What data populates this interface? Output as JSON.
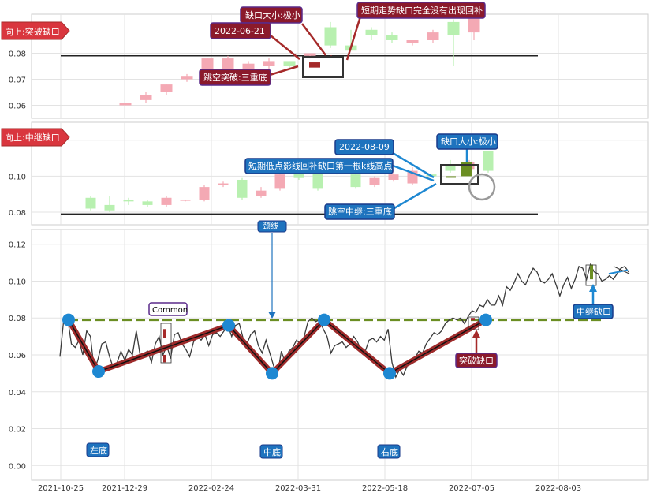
{
  "colors": {
    "up_red": "#f4a9b4",
    "down_green": "#b8f0b0",
    "dark_red": "#a52a2a",
    "dark_green": "#6b8e23",
    "box_red_fill": "#8b1a2b",
    "box_blue_fill": "#1e73be",
    "line_gray": "#3a3a3a",
    "level_green": "#6b8e23",
    "pivot_blue": "#1e88d2",
    "zigzag_red": "#9e2b2b"
  },
  "panel1": {
    "tag": "向上:突破缺口",
    "yticks": [
      "0.06",
      "0.07",
      "0.08"
    ],
    "callouts": {
      "gap_size": "缺口大小:极小",
      "date": "2022-06-21",
      "short_term": "短期走势缺口完全没有出现回补",
      "triple_bottom": "跳空突破:三重底"
    }
  },
  "panel2": {
    "tag": "向上:中继缺口",
    "yticks": [
      "0.08",
      "0.10",
      "0.12"
    ],
    "callouts": {
      "date": "2022-08-09",
      "gap_size": "缺口大小:极小",
      "shadow": "短期低点影线回补缺口第一根k线高点",
      "triple_bottom": "跳空中继:三重底"
    }
  },
  "panel3": {
    "neckline_label": "颈线",
    "common_label": "Common",
    "breakaway_label": "突破缺口",
    "runaway_label": "中继缺口",
    "bottoms": [
      "左底",
      "中底",
      "右底"
    ],
    "yticks": [
      "0.00",
      "0.02",
      "0.04",
      "0.06",
      "0.08",
      "0.10",
      "0.12"
    ]
  },
  "xaxis": {
    "ticks": [
      "2021-10-25",
      "2021-12-29",
      "2022-02-24",
      "2022-03-31",
      "2022-05-18",
      "2022-07-05",
      "2022-08-03"
    ]
  },
  "chart_data": [
    {
      "type": "candlestick",
      "panel": "top",
      "ylim": [
        0.055,
        0.095
      ],
      "note": "zoomed view of the breakaway gap area",
      "level": 0.079,
      "candles": [
        {
          "o": 0.06,
          "c": 0.061,
          "h": 0.061,
          "l": 0.06
        },
        {
          "o": 0.062,
          "c": 0.064,
          "h": 0.065,
          "l": 0.061
        },
        {
          "o": 0.065,
          "c": 0.068,
          "h": 0.068,
          "l": 0.064
        },
        {
          "o": 0.07,
          "c": 0.071,
          "h": 0.072,
          "l": 0.069
        },
        {
          "o": 0.073,
          "c": 0.078,
          "h": 0.078,
          "l": 0.072
        },
        {
          "o": 0.074,
          "c": 0.078,
          "h": 0.079,
          "l": 0.073
        },
        {
          "o": 0.074,
          "c": 0.076,
          "h": 0.077,
          "l": 0.073
        },
        {
          "o": 0.075,
          "c": 0.077,
          "h": 0.078,
          "l": 0.074
        },
        {
          "o": 0.077,
          "c": 0.075,
          "h": 0.077,
          "l": 0.074
        },
        {
          "o": 0.079,
          "c": 0.08,
          "h": 0.08,
          "l": 0.078
        },
        {
          "o": 0.09,
          "c": 0.083,
          "h": 0.092,
          "l": 0.082
        },
        {
          "o": 0.083,
          "c": 0.081,
          "h": 0.089,
          "l": 0.081
        },
        {
          "o": 0.089,
          "c": 0.087,
          "h": 0.09,
          "l": 0.085
        },
        {
          "o": 0.087,
          "c": 0.085,
          "h": 0.088,
          "l": 0.084
        },
        {
          "o": 0.084,
          "c": 0.085,
          "h": 0.085,
          "l": 0.083
        },
        {
          "o": 0.085,
          "c": 0.088,
          "h": 0.089,
          "l": 0.084
        },
        {
          "o": 0.092,
          "c": 0.087,
          "h": 0.093,
          "l": 0.075
        },
        {
          "o": 0.088,
          "c": 0.094,
          "h": 0.094,
          "l": 0.085
        }
      ]
    },
    {
      "type": "candlestick",
      "panel": "middle",
      "ylim": [
        0.073,
        0.13
      ],
      "note": "zoomed view of the runaway gap area",
      "level": 0.079,
      "candles": [
        {
          "o": 0.088,
          "c": 0.082,
          "h": 0.089,
          "l": 0.081
        },
        {
          "o": 0.084,
          "c": 0.081,
          "h": 0.089,
          "l": 0.08
        },
        {
          "o": 0.087,
          "c": 0.086,
          "h": 0.088,
          "l": 0.084
        },
        {
          "o": 0.086,
          "c": 0.084,
          "h": 0.087,
          "l": 0.083
        },
        {
          "o": 0.084,
          "c": 0.088,
          "h": 0.089,
          "l": 0.083
        },
        {
          "o": 0.087,
          "c": 0.087,
          "h": 0.087,
          "l": 0.086
        },
        {
          "o": 0.087,
          "c": 0.094,
          "h": 0.095,
          "l": 0.086
        },
        {
          "o": 0.095,
          "c": 0.096,
          "h": 0.097,
          "l": 0.094
        },
        {
          "o": 0.098,
          "c": 0.088,
          "h": 0.099,
          "l": 0.087
        },
        {
          "o": 0.089,
          "c": 0.092,
          "h": 0.094,
          "l": 0.088
        },
        {
          "o": 0.093,
          "c": 0.101,
          "h": 0.102,
          "l": 0.092
        },
        {
          "o": 0.104,
          "c": 0.099,
          "h": 0.107,
          "l": 0.098
        },
        {
          "o": 0.104,
          "c": 0.093,
          "h": 0.106,
          "l": 0.092
        },
        {
          "o": 0.104,
          "c": 0.102,
          "h": 0.106,
          "l": 0.101
        },
        {
          "o": 0.101,
          "c": 0.094,
          "h": 0.102,
          "l": 0.093
        },
        {
          "o": 0.095,
          "c": 0.099,
          "h": 0.1,
          "l": 0.094
        },
        {
          "o": 0.098,
          "c": 0.101,
          "h": 0.104,
          "l": 0.097
        },
        {
          "o": 0.096,
          "c": 0.103,
          "h": 0.105,
          "l": 0.095
        },
        {
          "o": 0.101,
          "c": 0.1,
          "h": 0.101,
          "l": 0.099
        },
        {
          "o": 0.106,
          "c": 0.103,
          "h": 0.109,
          "l": 0.102
        },
        {
          "o": 0.104,
          "c": 0.108,
          "h": 0.109,
          "l": 0.103
        },
        {
          "o": 0.114,
          "c": 0.103,
          "h": 0.114,
          "l": 0.102
        }
      ]
    },
    {
      "type": "line",
      "panel": "bottom",
      "ylim": [
        -0.008,
        0.128
      ],
      "neckline": 0.079,
      "series": [
        {
          "values": [
            0.059,
            0.079,
            0.08,
            0.066,
            0.064,
            0.068,
            0.06,
            0.073,
            0.07,
            0.051,
            0.058,
            0.066,
            0.067,
            0.059,
            0.053,
            0.056,
            0.062,
            0.057,
            0.063,
            0.06,
            0.073,
            0.06,
            0.061,
            0.062,
            0.056,
            0.066,
            0.07,
            0.06,
            0.065,
            0.058,
            0.071,
            0.072,
            0.066,
            0.063,
            0.059,
            0.067,
            0.07,
            0.068,
            0.071,
            0.065,
            0.071,
            0.072,
            0.07,
            0.073,
            0.076,
            0.07,
            0.076,
            0.077,
            0.069,
            0.066,
            0.071,
            0.073,
            0.065,
            0.061,
            0.068,
            0.061,
            0.054,
            0.049,
            0.062,
            0.056,
            0.062,
            0.064,
            0.068,
            0.066,
            0.07,
            0.078,
            0.08,
            0.078,
            0.079,
            0.074,
            0.07,
            0.061,
            0.065,
            0.066,
            0.067,
            0.064,
            0.066,
            0.07,
            0.067,
            0.062,
            0.062,
            0.068,
            0.069,
            0.067,
            0.07,
            0.068,
            0.074,
            0.056,
            0.048,
            0.052,
            0.049,
            0.054,
            0.055,
            0.058,
            0.062,
            0.061,
            0.066,
            0.069,
            0.072,
            0.071,
            0.073,
            0.077,
            0.079,
            0.08,
            0.079,
            0.08,
            0.077,
            0.081,
            0.084,
            0.083,
            0.087,
            0.086,
            0.09,
            0.087,
            0.087,
            0.092,
            0.087,
            0.097,
            0.095,
            0.099,
            0.104,
            0.1,
            0.098,
            0.103,
            0.107,
            0.105,
            0.1,
            0.099,
            0.101,
            0.104,
            0.098,
            0.092,
            0.098,
            0.102,
            0.096,
            0.101,
            0.108,
            0.107,
            0.101,
            0.109,
            0.105,
            0.104,
            0.1,
            0.101,
            0.103,
            0.101,
            0.104,
            0.107,
            0.108,
            0.105
          ]
        }
      ],
      "pivots": [
        {
          "label": "",
          "value": 0.079
        },
        {
          "label": "左底",
          "value": 0.051
        },
        {
          "label": "",
          "value": 0.076
        },
        {
          "label": "中底",
          "value": 0.05
        },
        {
          "label": "",
          "value": 0.079
        },
        {
          "label": "右底",
          "value": 0.05
        },
        {
          "label": "",
          "value": 0.079
        }
      ]
    }
  ]
}
